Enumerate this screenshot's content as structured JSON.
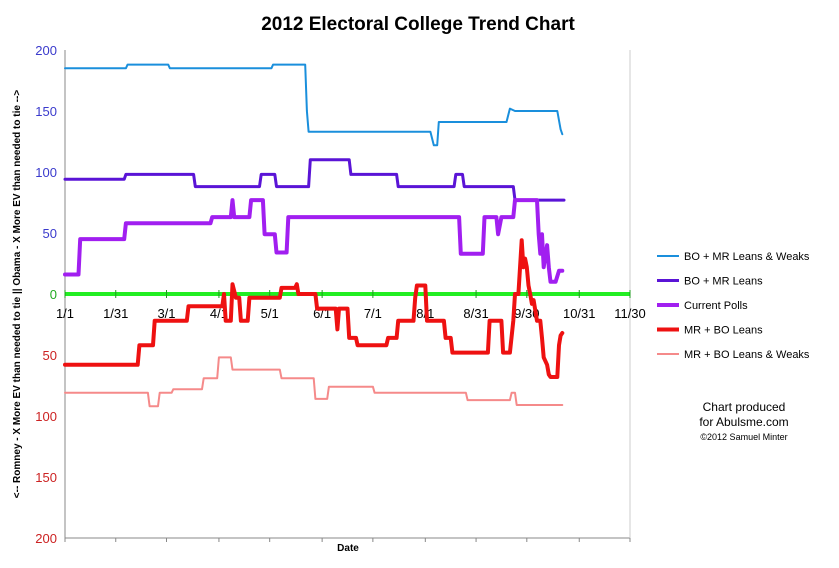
{
  "chart_data": {
    "type": "line",
    "title": "2012 Electoral College Trend Chart",
    "xlabel": "Date",
    "ylabel": "<-- Romney - X More EV than needed to tie ||  Obama - X More EV than needed to tie -->",
    "x_ticks": [
      "1/1",
      "1/31",
      "3/1",
      "4/1",
      "5/1",
      "6/1",
      "7/1",
      "8/1",
      "8/31",
      "9/30",
      "10/31",
      "11/30"
    ],
    "x_tick_days": [
      0,
      30,
      60,
      91,
      121,
      152,
      182,
      213,
      243,
      273,
      304,
      334
    ],
    "x_range_days": [
      0,
      334
    ],
    "y_upper_ticks": [
      "200",
      "150",
      "100",
      "50",
      "0"
    ],
    "y_lower_ticks": [
      "50",
      "100",
      "150",
      "200"
    ],
    "ylim": [
      -200,
      200
    ],
    "grid": false,
    "legend_position": "right",
    "zero_line_color": "#22ee22",
    "upper_tick_color": "#3a3acc",
    "lower_tick_color": "#cc2222",
    "series": [
      {
        "name": "BO + MR Leans & Weaks",
        "color": "#1a8fdc",
        "width": 2,
        "points": [
          [
            0,
            185
          ],
          [
            36,
            185
          ],
          [
            37,
            188
          ],
          [
            61,
            188
          ],
          [
            62,
            185
          ],
          [
            122,
            185
          ],
          [
            123,
            188
          ],
          [
            142,
            188
          ],
          [
            143,
            150
          ],
          [
            144,
            133
          ],
          [
            216,
            133
          ],
          [
            218,
            122
          ],
          [
            220,
            122
          ],
          [
            221,
            141
          ],
          [
            261,
            141
          ],
          [
            263,
            152
          ],
          [
            266,
            150
          ],
          [
            291,
            150
          ],
          [
            293,
            135
          ],
          [
            294,
            131
          ]
        ]
      },
      {
        "name": "BO + MR Leans",
        "color": "#5a14d6",
        "width": 3,
        "points": [
          [
            0,
            94
          ],
          [
            35,
            94
          ],
          [
            36,
            98
          ],
          [
            76,
            98
          ],
          [
            77,
            88
          ],
          [
            115,
            88
          ],
          [
            116,
            98
          ],
          [
            124,
            98
          ],
          [
            125,
            88
          ],
          [
            144,
            88
          ],
          [
            145,
            110
          ],
          [
            168,
            110
          ],
          [
            169,
            98
          ],
          [
            196,
            98
          ],
          [
            197,
            88
          ],
          [
            230,
            88
          ],
          [
            231,
            98
          ],
          [
            235,
            98
          ],
          [
            236,
            88
          ],
          [
            265,
            88
          ],
          [
            266,
            77
          ],
          [
            295,
            77
          ]
        ]
      },
      {
        "name": "Current Polls",
        "color": "#a11ff0",
        "width": 4,
        "points": [
          [
            0,
            16
          ],
          [
            8,
            16
          ],
          [
            9,
            45
          ],
          [
            35,
            45
          ],
          [
            36,
            58
          ],
          [
            86,
            58
          ],
          [
            87,
            63
          ],
          [
            98,
            63
          ],
          [
            99,
            77
          ],
          [
            100,
            63
          ],
          [
            109,
            63
          ],
          [
            110,
            77
          ],
          [
            117,
            77
          ],
          [
            118,
            49
          ],
          [
            124,
            49
          ],
          [
            125,
            34
          ],
          [
            131,
            34
          ],
          [
            132,
            63
          ],
          [
            207,
            63
          ],
          [
            208,
            63
          ],
          [
            218,
            63
          ],
          [
            222,
            63
          ],
          [
            233,
            63
          ],
          [
            234,
            33
          ],
          [
            247,
            33
          ],
          [
            248,
            63
          ],
          [
            255,
            63
          ],
          [
            256,
            49
          ],
          [
            258,
            63
          ],
          [
            265,
            63
          ],
          [
            266,
            77
          ],
          [
            279,
            77
          ],
          [
            280,
            49
          ],
          [
            281,
            33
          ],
          [
            282,
            49
          ],
          [
            283,
            22
          ],
          [
            285,
            40
          ],
          [
            286,
            22
          ],
          [
            287,
            10
          ],
          [
            290,
            10
          ],
          [
            292,
            19
          ],
          [
            294,
            19
          ]
        ]
      },
      {
        "name": "MR + BO Leans",
        "color": "#ee1111",
        "width": 4,
        "points": [
          [
            0,
            -58
          ],
          [
            43,
            -58
          ],
          [
            44,
            -42
          ],
          [
            52,
            -42
          ],
          [
            53,
            -22
          ],
          [
            72,
            -22
          ],
          [
            73,
            -10
          ],
          [
            93,
            -10
          ],
          [
            94,
            0
          ],
          [
            95,
            -22
          ],
          [
            98,
            -22
          ],
          [
            99,
            8
          ],
          [
            101,
            -3
          ],
          [
            103,
            -3
          ],
          [
            104,
            -22
          ],
          [
            108,
            -22
          ],
          [
            109,
            -3
          ],
          [
            122,
            -3
          ],
          [
            123,
            -3
          ],
          [
            127,
            -3
          ],
          [
            128,
            5
          ],
          [
            136,
            5
          ],
          [
            137,
            8
          ],
          [
            138,
            0
          ],
          [
            148,
            0
          ],
          [
            149,
            -12
          ],
          [
            157,
            -12
          ],
          [
            158,
            -12
          ],
          [
            160,
            -12
          ],
          [
            161,
            -29
          ],
          [
            162,
            -12
          ],
          [
            167,
            -12
          ],
          [
            168,
            -36
          ],
          [
            172,
            -36
          ],
          [
            173,
            -42
          ],
          [
            190,
            -42
          ],
          [
            191,
            -36
          ],
          [
            196,
            -36
          ],
          [
            197,
            -22
          ],
          [
            206,
            -22
          ],
          [
            207,
            -3
          ],
          [
            208,
            7
          ],
          [
            213,
            7
          ],
          [
            214,
            -22
          ],
          [
            218,
            -22
          ],
          [
            219,
            -22
          ],
          [
            224,
            -22
          ],
          [
            225,
            -36
          ],
          [
            228,
            -36
          ],
          [
            229,
            -48
          ],
          [
            250,
            -48
          ],
          [
            251,
            -22
          ],
          [
            258,
            -22
          ],
          [
            259,
            -48
          ],
          [
            263,
            -48
          ],
          [
            265,
            -22
          ],
          [
            266,
            0
          ],
          [
            268,
            0
          ],
          [
            270,
            44
          ],
          [
            271,
            22
          ],
          [
            272,
            29
          ],
          [
            273,
            22
          ],
          [
            274,
            7
          ],
          [
            275,
            0
          ],
          [
            276,
            -8
          ],
          [
            277,
            -5
          ],
          [
            279,
            -22
          ],
          [
            281,
            -22
          ],
          [
            282,
            -36
          ],
          [
            283,
            -52
          ],
          [
            285,
            -58
          ],
          [
            286,
            -66
          ],
          [
            287,
            -68
          ],
          [
            291,
            -68
          ],
          [
            292,
            -42
          ],
          [
            293,
            -34
          ],
          [
            294,
            -32
          ]
        ]
      },
      {
        "name": "MR + BO Leans & Weaks",
        "color": "#f58a8a",
        "width": 2,
        "points": [
          [
            0,
            -81
          ],
          [
            43,
            -81
          ],
          [
            44,
            -81
          ],
          [
            49,
            -81
          ],
          [
            50,
            -92
          ],
          [
            55,
            -92
          ],
          [
            56,
            -81
          ],
          [
            62,
            -81
          ],
          [
            63,
            -81
          ],
          [
            64,
            -78
          ],
          [
            78,
            -78
          ],
          [
            79,
            -78
          ],
          [
            81,
            -78
          ],
          [
            82,
            -69
          ],
          [
            90,
            -69
          ],
          [
            91,
            -52
          ],
          [
            98,
            -52
          ],
          [
            99,
            -62
          ],
          [
            118,
            -62
          ],
          [
            119,
            -62
          ],
          [
            127,
            -62
          ],
          [
            128,
            -69
          ],
          [
            136,
            -69
          ],
          [
            137,
            -69
          ],
          [
            143,
            -69
          ],
          [
            144,
            -69
          ],
          [
            147,
            -69
          ],
          [
            148,
            -86
          ],
          [
            155,
            -86
          ],
          [
            156,
            -76
          ],
          [
            178,
            -76
          ],
          [
            179,
            -76
          ],
          [
            182,
            -76
          ],
          [
            183,
            -81
          ],
          [
            213,
            -81
          ],
          [
            214,
            -81
          ],
          [
            237,
            -81
          ],
          [
            238,
            -87
          ],
          [
            263,
            -87
          ],
          [
            264,
            -81
          ],
          [
            266,
            -81
          ],
          [
            267,
            -91
          ],
          [
            294,
            -91
          ]
        ]
      }
    ]
  },
  "credit": {
    "line1": "Chart produced",
    "line2": "for Abulsme.com",
    "line3": "©2012 Samuel Minter"
  }
}
